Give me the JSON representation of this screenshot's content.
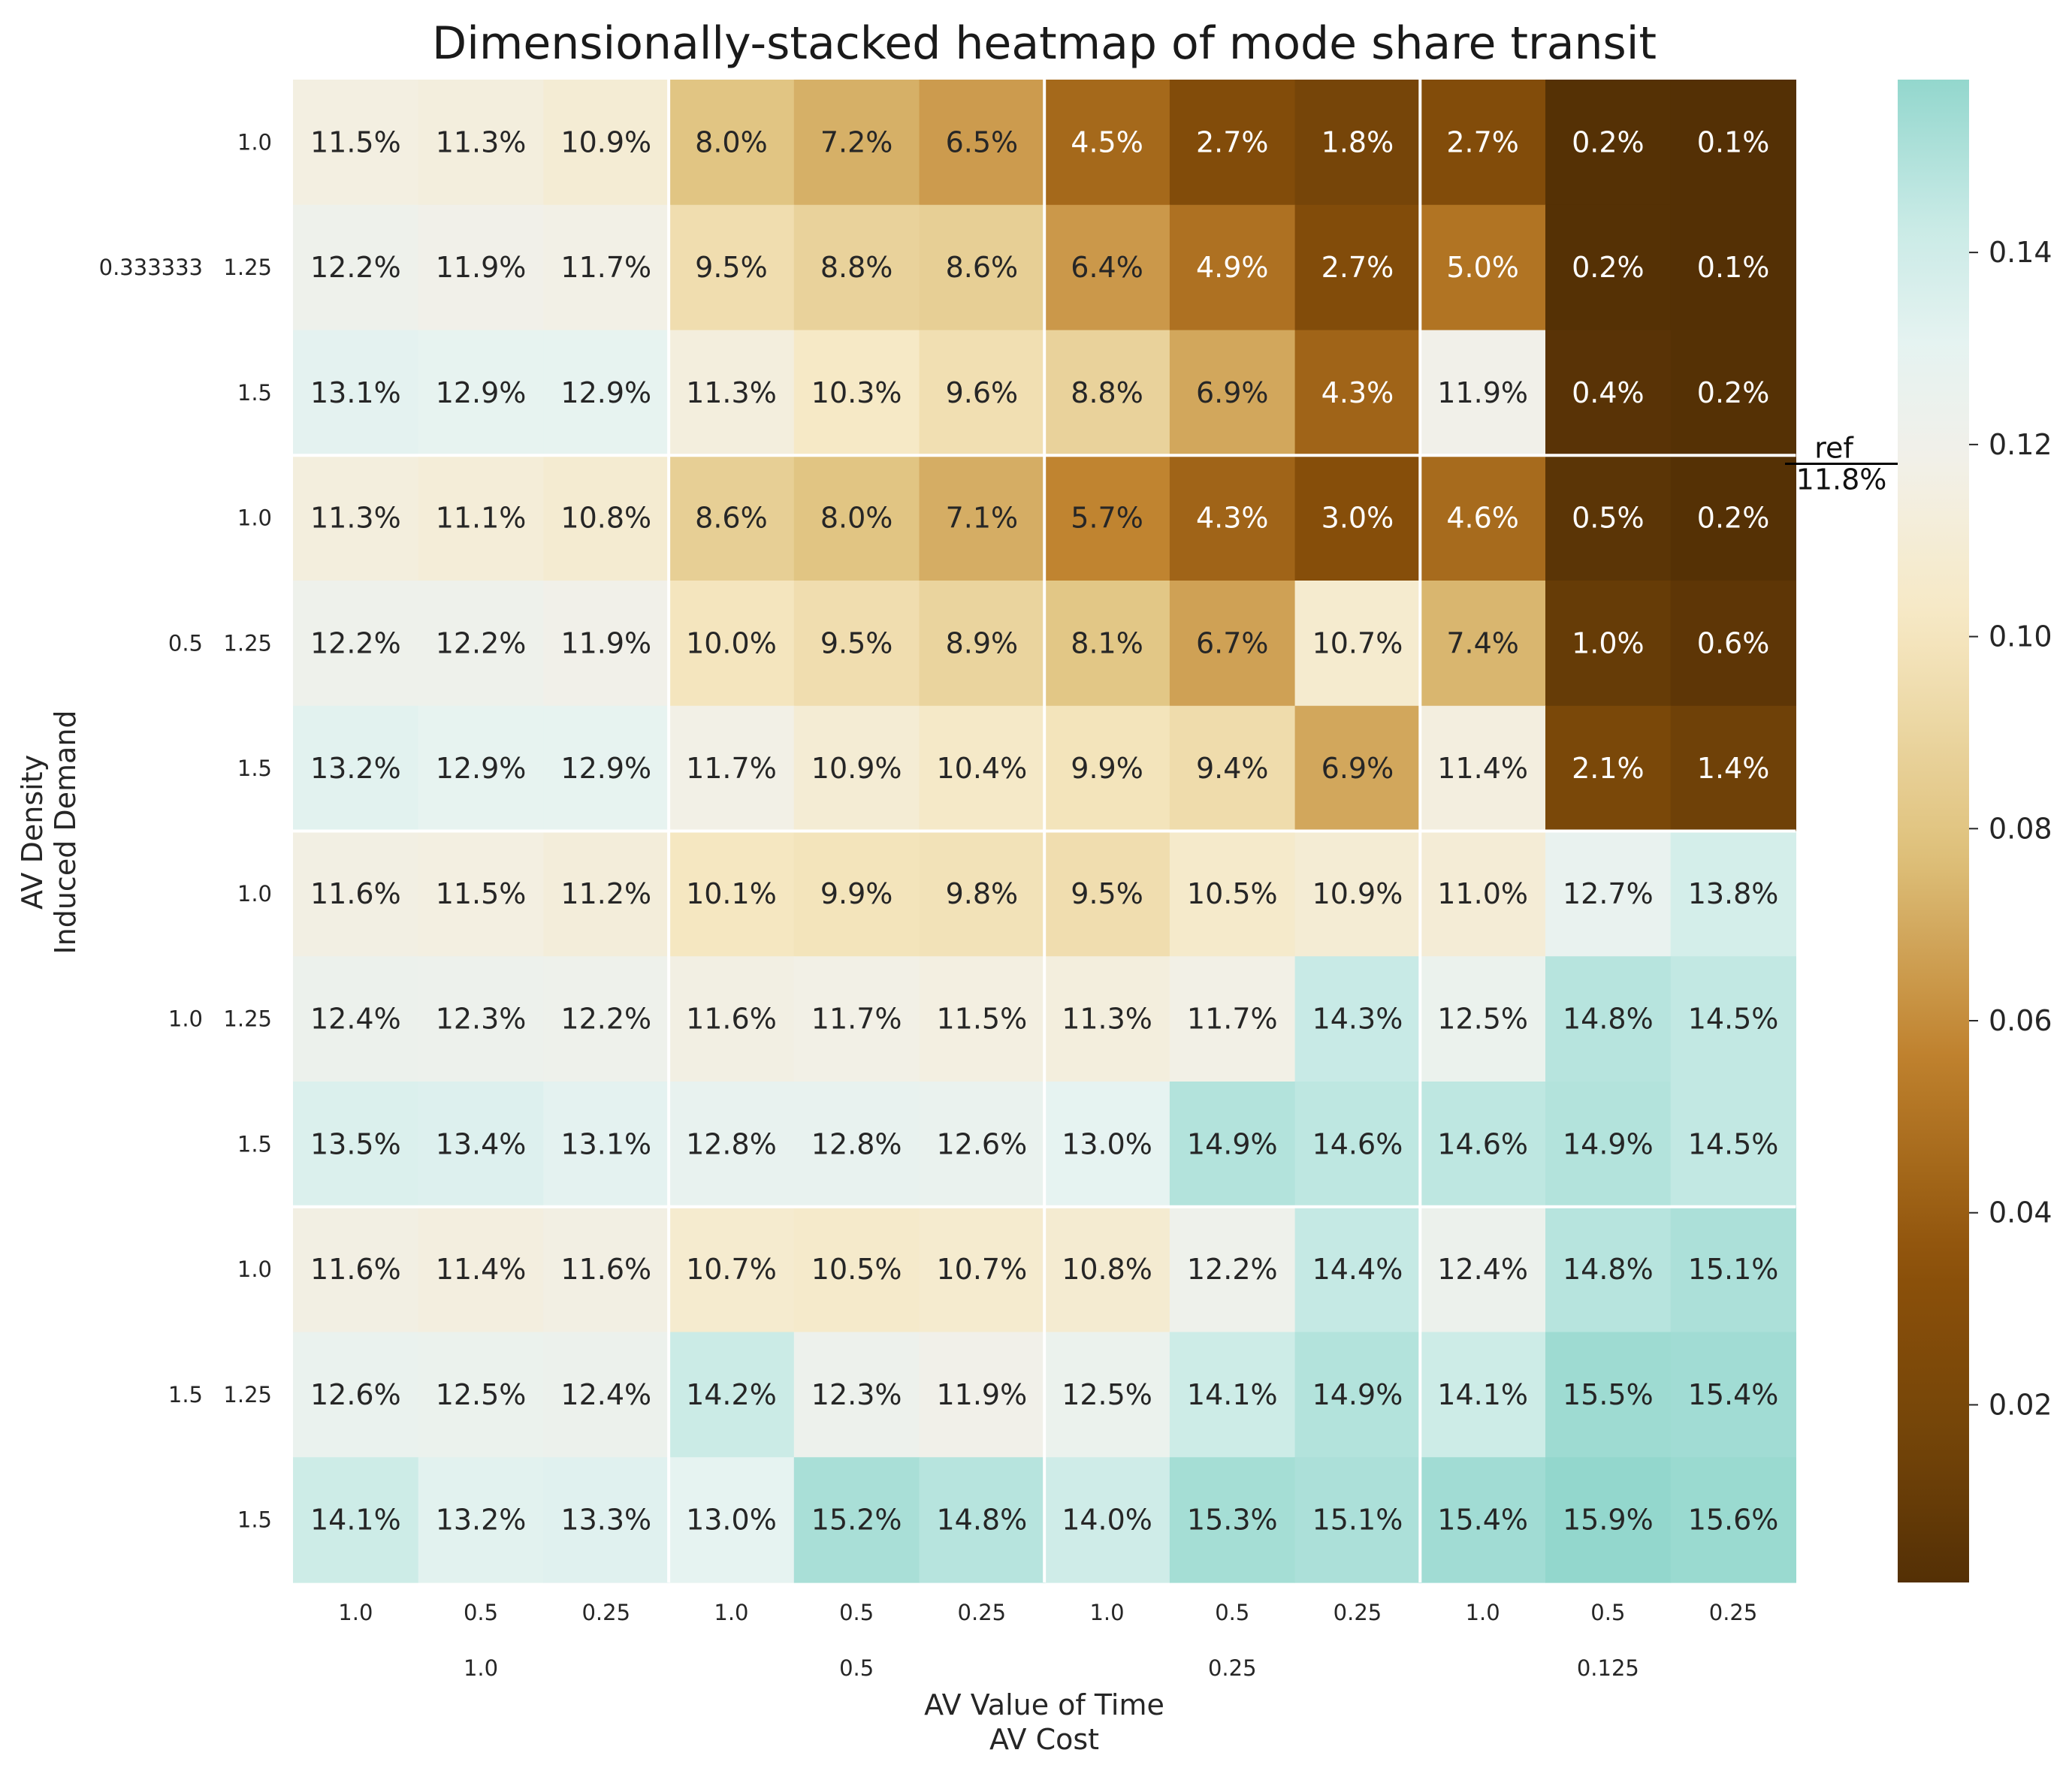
{
  "chart_data": {
    "type": "heatmap",
    "title": "Dimensionally-stacked heatmap of mode share transit",
    "xlabel": [
      "AV Value of Time",
      "AV Cost"
    ],
    "ylabel": [
      "AV Density",
      "Induced Demand"
    ],
    "x_outer": [
      "1.0",
      "0.5",
      "0.25",
      "0.125"
    ],
    "x_inner": [
      [
        "1.0",
        "0.5",
        "0.25"
      ],
      [
        "1.0",
        "0.5",
        "0.25"
      ],
      [
        "1.0",
        "0.5",
        "0.25"
      ],
      [
        "1.0",
        "0.5",
        "0.25"
      ]
    ],
    "y_outer": [
      "0.333333",
      "0.5",
      "1.0",
      "1.5"
    ],
    "y_inner": [
      [
        "1.0",
        "1.25",
        "1.5"
      ],
      [
        "1.0",
        "1.25",
        "1.5"
      ],
      [
        "1.0",
        "1.25",
        "1.5"
      ],
      [
        "1.0",
        "1.25",
        "1.5"
      ]
    ],
    "values": [
      [
        0.115,
        0.113,
        0.109,
        0.08,
        0.072,
        0.065,
        0.045,
        0.027,
        0.018,
        0.027,
        0.002,
        0.001
      ],
      [
        0.122,
        0.119,
        0.117,
        0.095,
        0.088,
        0.086,
        0.064,
        0.049,
        0.027,
        0.05,
        0.002,
        0.001
      ],
      [
        0.131,
        0.129,
        0.129,
        0.113,
        0.103,
        0.096,
        0.088,
        0.069,
        0.043,
        0.119,
        0.004,
        0.002
      ],
      [
        0.113,
        0.111,
        0.108,
        0.086,
        0.08,
        0.071,
        0.057,
        0.043,
        0.03,
        0.046,
        0.005,
        0.002
      ],
      [
        0.122,
        0.122,
        0.119,
        0.1,
        0.095,
        0.089,
        0.081,
        0.067,
        0.107,
        0.074,
        0.01,
        0.006
      ],
      [
        0.132,
        0.129,
        0.129,
        0.117,
        0.109,
        0.104,
        0.099,
        0.094,
        0.069,
        0.114,
        0.021,
        0.014
      ],
      [
        0.116,
        0.115,
        0.112,
        0.101,
        0.099,
        0.098,
        0.095,
        0.105,
        0.109,
        0.11,
        0.127,
        0.138
      ],
      [
        0.124,
        0.123,
        0.122,
        0.116,
        0.117,
        0.115,
        0.113,
        0.117,
        0.143,
        0.125,
        0.148,
        0.145
      ],
      [
        0.135,
        0.134,
        0.131,
        0.128,
        0.128,
        0.126,
        0.13,
        0.149,
        0.146,
        0.146,
        0.149,
        0.145
      ],
      [
        0.116,
        0.114,
        0.116,
        0.107,
        0.105,
        0.107,
        0.108,
        0.122,
        0.144,
        0.124,
        0.148,
        0.151
      ],
      [
        0.126,
        0.125,
        0.124,
        0.142,
        0.123,
        0.119,
        0.125,
        0.141,
        0.149,
        0.141,
        0.155,
        0.154
      ],
      [
        0.141,
        0.132,
        0.133,
        0.13,
        0.152,
        0.148,
        0.14,
        0.153,
        0.151,
        0.154,
        0.159,
        0.156
      ]
    ],
    "labels": [
      [
        "11.5%",
        "11.3%",
        "10.9%",
        "8.0%",
        "7.2%",
        "6.5%",
        "4.5%",
        "2.7%",
        "1.8%",
        "2.7%",
        "0.2%",
        "0.1%"
      ],
      [
        "12.2%",
        "11.9%",
        "11.7%",
        "9.5%",
        "8.8%",
        "8.6%",
        "6.4%",
        "4.9%",
        "2.7%",
        "5.0%",
        "0.2%",
        "0.1%"
      ],
      [
        "13.1%",
        "12.9%",
        "12.9%",
        "11.3%",
        "10.3%",
        "9.6%",
        "8.8%",
        "6.9%",
        "4.3%",
        "11.9%",
        "0.4%",
        "0.2%"
      ],
      [
        "11.3%",
        "11.1%",
        "10.8%",
        "8.6%",
        "8.0%",
        "7.1%",
        "5.7%",
        "4.3%",
        "3.0%",
        "4.6%",
        "0.5%",
        "0.2%"
      ],
      [
        "12.2%",
        "12.2%",
        "11.9%",
        "10.0%",
        "9.5%",
        "8.9%",
        "8.1%",
        "6.7%",
        "10.7%",
        "7.4%",
        "1.0%",
        "0.6%"
      ],
      [
        "13.2%",
        "12.9%",
        "12.9%",
        "11.7%",
        "10.9%",
        "10.4%",
        "9.9%",
        "9.4%",
        "6.9%",
        "11.4%",
        "2.1%",
        "1.4%"
      ],
      [
        "11.6%",
        "11.5%",
        "11.2%",
        "10.1%",
        "9.9%",
        "9.8%",
        "9.5%",
        "10.5%",
        "10.9%",
        "11.0%",
        "12.7%",
        "13.8%"
      ],
      [
        "12.4%",
        "12.3%",
        "12.2%",
        "11.6%",
        "11.7%",
        "11.5%",
        "11.3%",
        "11.7%",
        "14.3%",
        "12.5%",
        "14.8%",
        "14.5%"
      ],
      [
        "13.5%",
        "13.4%",
        "13.1%",
        "12.8%",
        "12.8%",
        "12.6%",
        "13.0%",
        "14.9%",
        "14.6%",
        "14.6%",
        "14.9%",
        "14.5%"
      ],
      [
        "11.6%",
        "11.4%",
        "11.6%",
        "10.7%",
        "10.5%",
        "10.7%",
        "10.8%",
        "12.2%",
        "14.4%",
        "12.4%",
        "14.8%",
        "15.1%"
      ],
      [
        "12.6%",
        "12.5%",
        "12.4%",
        "14.2%",
        "12.3%",
        "11.9%",
        "12.5%",
        "14.1%",
        "14.9%",
        "14.1%",
        "15.5%",
        "15.4%"
      ],
      [
        "14.1%",
        "13.2%",
        "13.3%",
        "13.0%",
        "15.2%",
        "14.8%",
        "14.0%",
        "15.3%",
        "15.1%",
        "15.4%",
        "15.9%",
        "15.6%"
      ]
    ],
    "colorbar": {
      "colormap": "BrBG",
      "vmin": 0.0015,
      "vmax": 0.158,
      "center": 0.118,
      "ticks": [
        0.02,
        0.04,
        0.06,
        0.08,
        0.1,
        0.12,
        0.14
      ],
      "tick_labels": [
        "0.02",
        "0.04",
        "0.06",
        "0.08",
        "0.10",
        "0.12",
        "0.14"
      ],
      "reference_value": 0.118,
      "reference_label_1": "ref",
      "reference_label_2": "11.8%"
    },
    "group_separators": "white lines between groups of 3"
  }
}
